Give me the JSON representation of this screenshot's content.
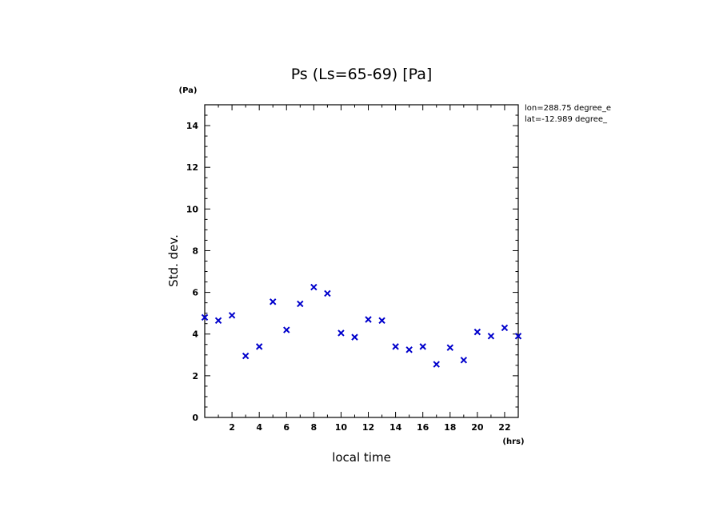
{
  "chart_data": {
    "type": "scatter",
    "title": "Ps (Ls=65-69) [Pa]",
    "xlabel": "local time",
    "ylabel": "Std. dev.",
    "x_unit": "(hrs)",
    "y_unit": "(Pa)",
    "xlim": [
      0,
      23
    ],
    "ylim": [
      0,
      15
    ],
    "xticks": [
      2,
      4,
      6,
      8,
      10,
      12,
      14,
      16,
      18,
      20,
      22
    ],
    "yticks": [
      0,
      2,
      4,
      6,
      8,
      10,
      12,
      14
    ],
    "grid": false,
    "marker": "x",
    "marker_color": "#0000cc",
    "annotations": [
      "lon=288.75 degree_e",
      "lat=-12.989 degree_"
    ],
    "x": [
      0,
      1,
      2,
      3,
      4,
      5,
      6,
      7,
      8,
      9,
      10,
      11,
      12,
      13,
      14,
      15,
      16,
      17,
      18,
      19,
      20,
      21,
      22,
      23
    ],
    "y": [
      4.8,
      4.65,
      4.9,
      2.95,
      3.4,
      5.55,
      4.2,
      5.45,
      6.25,
      5.95,
      4.05,
      3.85,
      4.7,
      4.65,
      3.4,
      3.25,
      3.4,
      2.55,
      3.35,
      2.75,
      4.1,
      3.9,
      4.3,
      3.9
    ]
  }
}
